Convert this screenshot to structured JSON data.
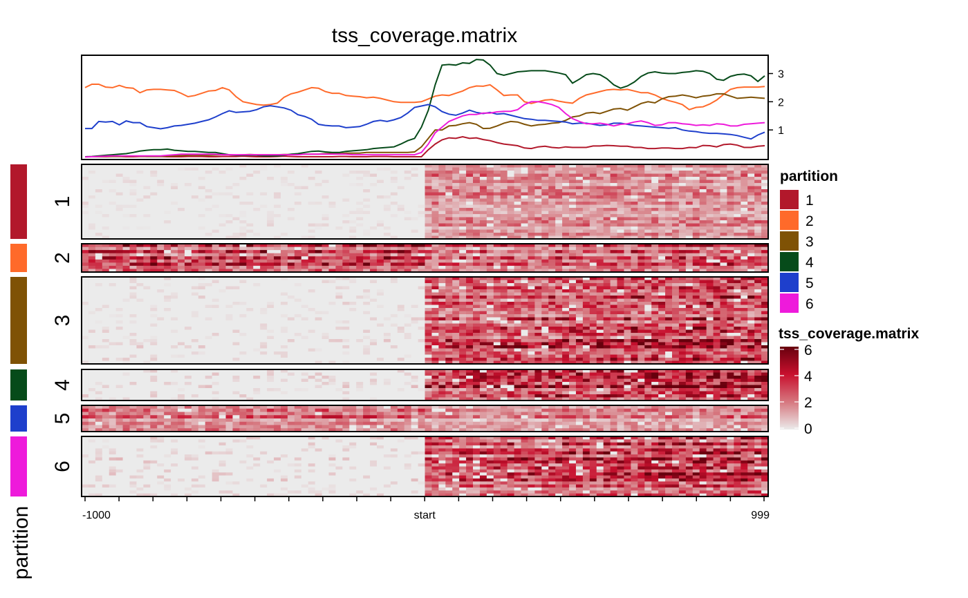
{
  "chart_data": {
    "type": "heatmap",
    "title": "tss_coverage.matrix",
    "x_tick_labels": [
      "-1000",
      "start",
      "999"
    ],
    "x_range": [
      -1000,
      999
    ],
    "bins": 100,
    "partition_label": "partition",
    "partitions": [
      {
        "name": "1",
        "color": "#B2182B",
        "rows": 24,
        "signal": [
          0.2,
          1.4
        ]
      },
      {
        "name": "2",
        "color": "#FF6A2A",
        "rows": 9,
        "signal": [
          2.6,
          2.2
        ]
      },
      {
        "name": "3",
        "color": "#7F5205",
        "rows": 28,
        "signal": [
          0.3,
          3.0
        ]
      },
      {
        "name": "4",
        "color": "#064B1A",
        "rows": 10,
        "signal": [
          0.4,
          3.6
        ]
      },
      {
        "name": "5",
        "color": "#1E3FCC",
        "rows": 8,
        "signal": [
          1.9,
          1.6
        ]
      },
      {
        "name": "6",
        "color": "#EE1ADB",
        "rows": 20,
        "signal": [
          0.4,
          2.8
        ]
      }
    ],
    "top_annotation": {
      "type": "line",
      "y_ticks": [
        "1",
        "2",
        "3"
      ],
      "y_range": [
        0,
        3.6
      ],
      "series": [
        {
          "name": "1",
          "color": "#B2182B",
          "values": [
            0.05,
            0.05,
            0.05,
            0.05,
            0.06,
            0.06,
            0.05,
            0.05,
            0.06,
            0.06,
            0.06,
            0.06,
            0.05,
            0.05,
            0.05,
            0.06,
            0.06,
            0.06,
            0.05,
            0.05,
            0.06,
            0.06,
            0.06,
            0.07,
            0.06,
            0.05,
            0.05,
            0.05,
            0.06,
            0.07,
            0.06,
            0.05,
            0.05,
            0.05,
            0.05,
            0.05,
            0.05,
            0.06,
            0.06,
            0.05,
            0.05,
            0.05,
            0.06,
            0.06,
            0.06,
            0.05,
            0.05,
            0.05,
            0.05,
            0.05,
            0.3,
            0.5,
            0.65,
            0.72,
            0.7,
            0.76,
            0.7,
            0.72,
            0.66,
            0.62,
            0.55,
            0.5,
            0.47,
            0.44,
            0.36,
            0.34,
            0.4,
            0.42,
            0.38,
            0.36,
            0.4,
            0.38,
            0.38,
            0.38,
            0.43,
            0.43,
            0.45,
            0.44,
            0.42,
            0.42,
            0.38,
            0.38,
            0.34,
            0.34,
            0.36,
            0.36,
            0.34,
            0.34,
            0.38,
            0.37,
            0.45,
            0.44,
            0.4,
            0.48,
            0.5,
            0.46,
            0.38,
            0.38,
            0.42,
            0.44
          ]
        },
        {
          "name": "2",
          "color": "#FF6A2A",
          "values": [
            2.5,
            2.62,
            2.62,
            2.52,
            2.5,
            2.58,
            2.5,
            2.48,
            2.32,
            2.42,
            2.44,
            2.44,
            2.42,
            2.4,
            2.3,
            2.18,
            2.22,
            2.3,
            2.38,
            2.4,
            2.5,
            2.42,
            2.18,
            2.0,
            1.95,
            1.9,
            1.88,
            1.9,
            1.95,
            2.16,
            2.28,
            2.34,
            2.42,
            2.5,
            2.48,
            2.36,
            2.3,
            2.3,
            2.22,
            2.2,
            2.18,
            2.14,
            2.16,
            2.12,
            2.06,
            2.0,
            1.98,
            1.98,
            1.98,
            2.0,
            2.1,
            2.2,
            2.24,
            2.22,
            2.3,
            2.38,
            2.5,
            2.56,
            2.55,
            2.6,
            2.42,
            2.22,
            2.24,
            2.24,
            2.0,
            1.94,
            2.0,
            2.06,
            2.08,
            2.02,
            1.98,
            1.95,
            2.12,
            2.24,
            2.3,
            2.36,
            2.42,
            2.44,
            2.42,
            2.44,
            2.38,
            2.32,
            2.32,
            2.24,
            2.12,
            2.04,
            1.98,
            1.9,
            1.72,
            1.8,
            1.82,
            1.92,
            2.06,
            2.26,
            2.44,
            2.5,
            2.52,
            2.52,
            2.52,
            2.54
          ]
        },
        {
          "name": "3",
          "color": "#7F5205",
          "values": [
            0.05,
            0.05,
            0.05,
            0.06,
            0.06,
            0.06,
            0.07,
            0.07,
            0.07,
            0.06,
            0.06,
            0.06,
            0.07,
            0.08,
            0.09,
            0.1,
            0.11,
            0.1,
            0.1,
            0.11,
            0.12,
            0.12,
            0.11,
            0.12,
            0.13,
            0.12,
            0.12,
            0.12,
            0.12,
            0.13,
            0.13,
            0.13,
            0.14,
            0.14,
            0.14,
            0.16,
            0.16,
            0.16,
            0.18,
            0.18,
            0.18,
            0.2,
            0.2,
            0.2,
            0.2,
            0.2,
            0.2,
            0.2,
            0.22,
            0.4,
            0.7,
            1.0,
            1.0,
            1.14,
            1.16,
            1.22,
            1.26,
            1.2,
            1.05,
            1.06,
            1.14,
            1.24,
            1.3,
            1.28,
            1.2,
            1.14,
            1.18,
            1.2,
            1.24,
            1.26,
            1.34,
            1.46,
            1.5,
            1.6,
            1.62,
            1.58,
            1.66,
            1.74,
            1.76,
            1.7,
            1.82,
            1.94,
            2.0,
            1.96,
            2.1,
            2.18,
            2.2,
            2.24,
            2.2,
            2.14,
            2.2,
            2.22,
            2.28,
            2.28,
            2.2,
            2.12,
            2.14,
            2.16,
            2.14,
            2.12
          ]
        },
        {
          "name": "4",
          "color": "#064B1A",
          "values": [
            0.05,
            0.06,
            0.08,
            0.1,
            0.12,
            0.14,
            0.16,
            0.2,
            0.25,
            0.28,
            0.3,
            0.3,
            0.32,
            0.28,
            0.26,
            0.24,
            0.24,
            0.22,
            0.2,
            0.2,
            0.16,
            0.12,
            0.1,
            0.1,
            0.1,
            0.1,
            0.08,
            0.08,
            0.08,
            0.1,
            0.14,
            0.16,
            0.2,
            0.24,
            0.25,
            0.22,
            0.2,
            0.2,
            0.24,
            0.26,
            0.28,
            0.3,
            0.34,
            0.36,
            0.38,
            0.4,
            0.5,
            0.62,
            0.7,
            1.1,
            1.7,
            2.6,
            3.3,
            3.32,
            3.3,
            3.38,
            3.36,
            3.5,
            3.48,
            3.3,
            3.0,
            2.94,
            3.0,
            3.06,
            3.08,
            3.1,
            3.1,
            3.1,
            3.06,
            3.02,
            2.96,
            2.66,
            2.8,
            2.96,
            3.0,
            2.96,
            2.82,
            2.6,
            2.48,
            2.56,
            2.7,
            2.9,
            3.02,
            3.06,
            3.02,
            3.0,
            3.0,
            3.04,
            3.06,
            3.1,
            3.08,
            3.0,
            2.8,
            2.76,
            2.9,
            2.96,
            2.98,
            2.92,
            2.72,
            2.92
          ]
        },
        {
          "name": "5",
          "color": "#1E3FCC",
          "values": [
            1.05,
            1.05,
            1.3,
            1.28,
            1.3,
            1.18,
            1.32,
            1.26,
            1.26,
            1.12,
            1.08,
            1.04,
            1.08,
            1.14,
            1.16,
            1.2,
            1.24,
            1.3,
            1.36,
            1.46,
            1.58,
            1.68,
            1.62,
            1.64,
            1.66,
            1.72,
            1.82,
            1.86,
            1.82,
            1.78,
            1.7,
            1.54,
            1.48,
            1.38,
            1.2,
            1.16,
            1.14,
            1.14,
            1.08,
            1.1,
            1.12,
            1.2,
            1.3,
            1.34,
            1.3,
            1.36,
            1.44,
            1.6,
            1.8,
            1.85,
            1.9,
            1.82,
            1.65,
            1.56,
            1.52,
            1.6,
            1.7,
            1.62,
            1.58,
            1.62,
            1.56,
            1.58,
            1.52,
            1.46,
            1.4,
            1.38,
            1.34,
            1.34,
            1.32,
            1.3,
            1.28,
            1.22,
            1.24,
            1.24,
            1.2,
            1.16,
            1.18,
            1.24,
            1.24,
            1.2,
            1.16,
            1.14,
            1.12,
            1.1,
            1.08,
            1.06,
            1.08,
            1.0,
            0.96,
            0.94,
            0.9,
            0.88,
            0.88,
            0.86,
            0.84,
            0.8,
            0.74,
            0.68,
            0.82,
            0.92
          ]
        },
        {
          "name": "6",
          "color": "#EE1ADB",
          "values": [
            0.04,
            0.05,
            0.06,
            0.07,
            0.08,
            0.08,
            0.08,
            0.08,
            0.08,
            0.08,
            0.08,
            0.08,
            0.1,
            0.12,
            0.14,
            0.14,
            0.14,
            0.14,
            0.14,
            0.14,
            0.12,
            0.12,
            0.12,
            0.12,
            0.12,
            0.12,
            0.12,
            0.12,
            0.12,
            0.12,
            0.12,
            0.12,
            0.14,
            0.14,
            0.14,
            0.14,
            0.14,
            0.14,
            0.14,
            0.12,
            0.12,
            0.12,
            0.12,
            0.12,
            0.12,
            0.12,
            0.12,
            0.12,
            0.12,
            0.2,
            0.5,
            0.9,
            1.1,
            1.3,
            1.4,
            1.5,
            1.55,
            1.55,
            1.6,
            1.6,
            1.64,
            1.66,
            1.66,
            1.72,
            1.9,
            2.0,
            2.0,
            1.96,
            1.9,
            1.8,
            1.58,
            1.4,
            1.3,
            1.22,
            1.22,
            1.24,
            1.2,
            1.14,
            1.2,
            1.22,
            1.28,
            1.32,
            1.26,
            1.16,
            1.18,
            1.26,
            1.26,
            1.22,
            1.2,
            1.16,
            1.18,
            1.16,
            1.22,
            1.2,
            1.14,
            1.14,
            1.2,
            1.22,
            1.24,
            1.26
          ]
        }
      ]
    },
    "legends": {
      "partition": {
        "title": "partition",
        "labels": [
          "1",
          "2",
          "3",
          "4",
          "5",
          "6"
        ]
      },
      "color_scale": {
        "title": "tss_coverage.matrix",
        "ticks": [
          "6",
          "4",
          "2",
          "0"
        ],
        "range": [
          0,
          6
        ],
        "colors": [
          "#EBEBEB",
          "#D6777F",
          "#C8102E",
          "#67000D"
        ]
      }
    }
  }
}
